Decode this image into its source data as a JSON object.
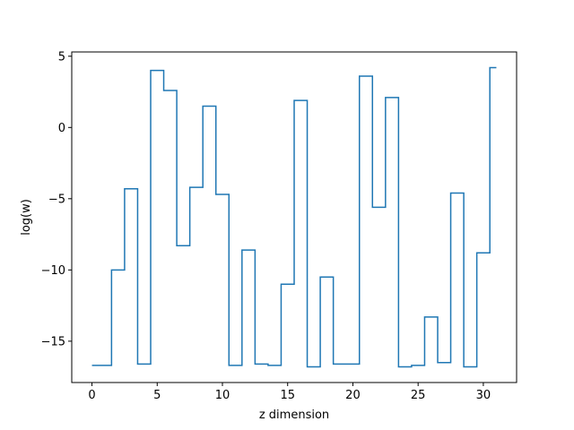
{
  "chart_data": {
    "type": "line",
    "drawstyle": "steps-mid",
    "title": "",
    "xlabel": "z dimension",
    "ylabel": "log(w)",
    "xlim": [
      -1.55,
      32.55
    ],
    "ylim": [
      -17.9,
      5.3
    ],
    "xticks": [
      0,
      5,
      10,
      15,
      20,
      25,
      30
    ],
    "yticks": [
      5,
      0,
      -5,
      -10,
      -15
    ],
    "ytick_labels": [
      "5",
      "0",
      "−5",
      "−10",
      "−15"
    ],
    "grid": false,
    "legend": "none",
    "series": [
      {
        "color": "#1f77b4",
        "x": [
          0,
          1,
          2,
          3,
          4,
          5,
          6,
          7,
          8,
          9,
          10,
          11,
          12,
          13,
          14,
          15,
          16,
          17,
          18,
          19,
          20,
          21,
          22,
          23,
          24,
          25,
          26,
          27,
          28,
          29,
          30,
          31
        ],
        "y": [
          -16.7,
          -16.7,
          -10.0,
          -4.3,
          -16.6,
          4.0,
          2.6,
          -8.3,
          -4.2,
          1.5,
          -4.7,
          -16.7,
          -8.6,
          -16.6,
          -16.7,
          -11.0,
          1.9,
          -16.8,
          -10.5,
          -16.6,
          -16.6,
          3.6,
          -5.6,
          2.1,
          -16.8,
          -16.7,
          -13.3,
          -16.5,
          -4.6,
          -16.8,
          -8.8,
          4.2
        ]
      }
    ]
  }
}
